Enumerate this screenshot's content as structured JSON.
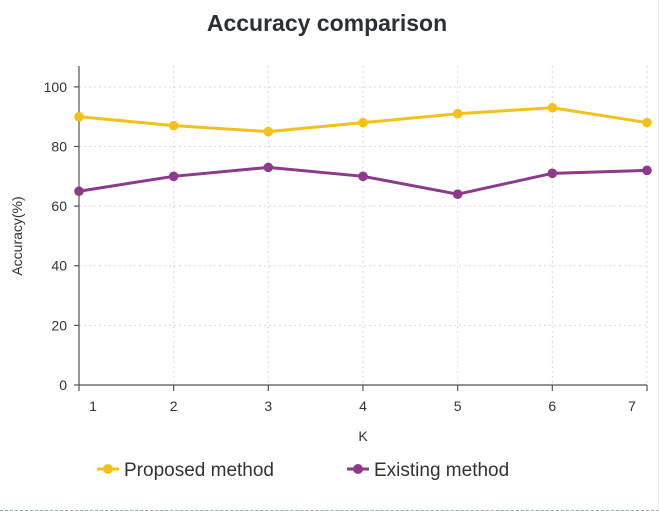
{
  "chart_data": {
    "type": "line",
    "title": "Accuracy comparison",
    "xlabel": "K",
    "ylabel": "Accuracy(%)",
    "x": [
      1,
      2,
      3,
      4,
      5,
      6,
      7
    ],
    "ylim": [
      0,
      107
    ],
    "yticks": [
      0,
      20,
      40,
      60,
      80,
      100
    ],
    "grid": true,
    "legend_position": "bottom",
    "series": [
      {
        "name": "Proposed method",
        "color": "#f2c21b",
        "values": [
          90,
          87,
          85,
          88,
          91,
          93,
          88
        ]
      },
      {
        "name": "Existing method",
        "color": "#8b3a8c",
        "values": [
          65,
          70,
          73,
          70,
          64,
          71,
          72
        ]
      }
    ]
  }
}
